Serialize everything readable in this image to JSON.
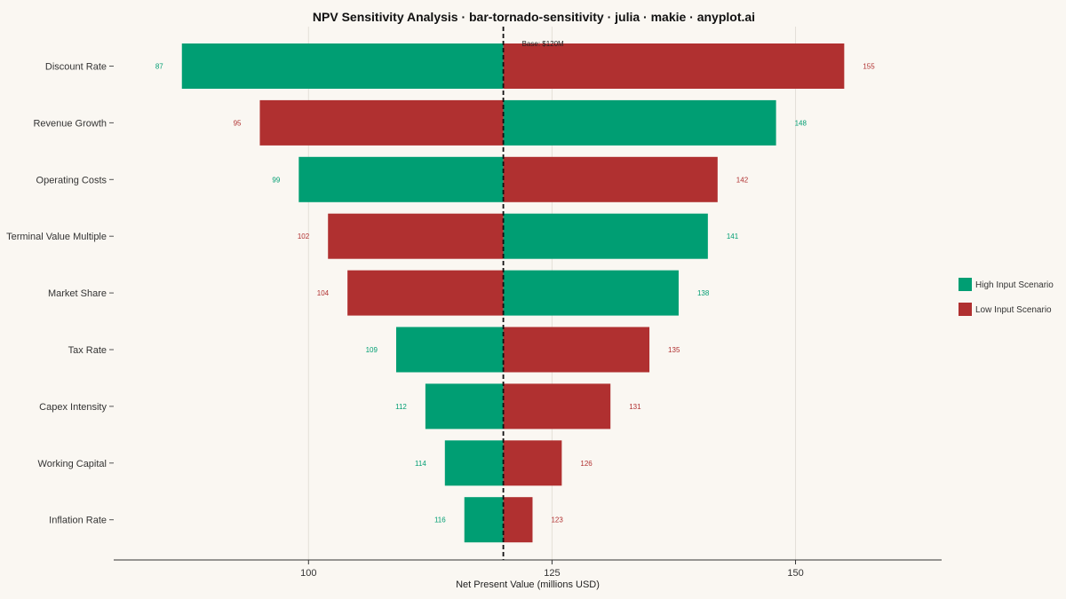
{
  "chart_data": {
    "type": "bar",
    "orientation": "horizontal",
    "title": "NPV Sensitivity Analysis · bar-tornado-sensitivity · julia · makie · anyplot.ai",
    "xlabel": "Net Present Value (millions USD)",
    "ylabel": "",
    "xlim": [
      80,
      165
    ],
    "xticks": [
      100,
      125,
      150
    ],
    "xtick_labels": [
      "100",
      "125",
      "150"
    ],
    "grid": true,
    "base_value": 120,
    "base_label": "Base: $120M",
    "legend_position": "right",
    "series": [
      {
        "name": "High Input Scenario",
        "color": "#009E73"
      },
      {
        "name": "Low Input Scenario",
        "color": "#B03030"
      }
    ],
    "categories": [
      "Discount Rate",
      "Revenue Growth",
      "Operating Costs",
      "Terminal Value Multiple",
      "Market Share",
      "Tax Rate",
      "Capex Intensity",
      "Working Capital",
      "Inflation Rate"
    ],
    "high_values": [
      87,
      148,
      99,
      141,
      138,
      109,
      112,
      114,
      116
    ],
    "low_values": [
      155,
      95,
      142,
      102,
      104,
      135,
      131,
      126,
      123
    ],
    "value_labels": {
      "high": [
        "87",
        "148",
        "99",
        "141",
        "138",
        "109",
        "112",
        "114",
        "116"
      ],
      "low": [
        "155",
        "95",
        "142",
        "102",
        "104",
        "135",
        "131",
        "126",
        "123"
      ]
    }
  }
}
